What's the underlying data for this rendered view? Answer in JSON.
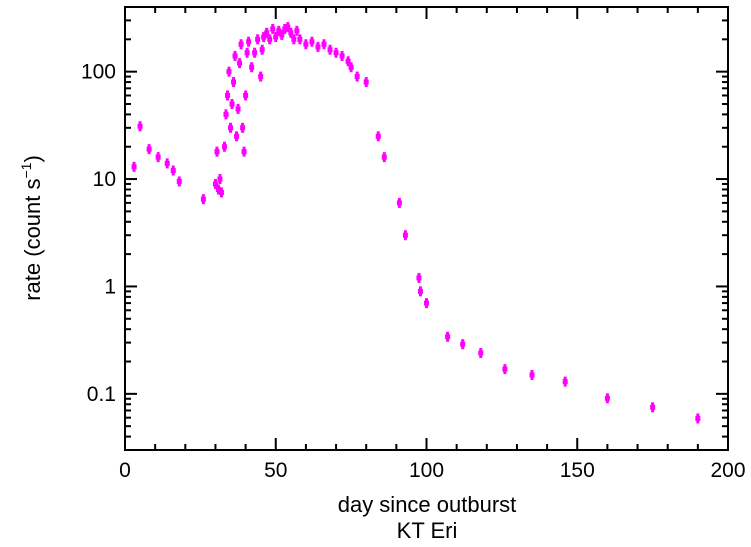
{
  "chart_data": {
    "type": "scatter",
    "title": "",
    "xlabel": "day since outburst",
    "ylabel": "rate (count s",
    "ylabel_sup": "−1",
    "ylabel_close": ")",
    "caption": "KT Eri",
    "xlim": [
      0,
      200
    ],
    "ylim": [
      0.03,
      400
    ],
    "yscale": "log",
    "grid": false,
    "marker_color": "#ff00ff",
    "x_ticks": [
      0,
      50,
      100,
      150,
      200
    ],
    "x_tick_labels": [
      "0",
      "50",
      "100",
      "150",
      "200"
    ],
    "y_ticks": [
      0.1,
      1,
      10,
      100
    ],
    "y_tick_labels": [
      "0.1",
      "1",
      "10",
      "100"
    ],
    "points": [
      [
        3,
        13
      ],
      [
        5,
        31
      ],
      [
        8,
        19
      ],
      [
        11,
        16
      ],
      [
        14,
        14
      ],
      [
        16,
        12
      ],
      [
        18,
        9.5
      ],
      [
        26,
        6.5
      ],
      [
        30,
        9
      ],
      [
        30.5,
        18
      ],
      [
        31,
        8
      ],
      [
        31.5,
        10
      ],
      [
        32,
        7.5
      ],
      [
        33,
        20
      ],
      [
        33.5,
        40
      ],
      [
        34,
        60
      ],
      [
        34.5,
        100
      ],
      [
        35,
        30
      ],
      [
        35.5,
        50
      ],
      [
        36,
        80
      ],
      [
        36.5,
        140
      ],
      [
        37,
        25
      ],
      [
        37.5,
        45
      ],
      [
        38,
        120
      ],
      [
        38.5,
        180
      ],
      [
        39,
        30
      ],
      [
        39.5,
        18
      ],
      [
        40,
        60
      ],
      [
        40.5,
        150
      ],
      [
        41,
        190
      ],
      [
        42,
        110
      ],
      [
        43,
        150
      ],
      [
        44,
        200
      ],
      [
        45,
        90
      ],
      [
        45.5,
        160
      ],
      [
        46,
        210
      ],
      [
        47,
        230
      ],
      [
        48,
        200
      ],
      [
        49,
        250
      ],
      [
        50,
        210
      ],
      [
        51,
        240
      ],
      [
        52,
        220
      ],
      [
        53,
        250
      ],
      [
        54,
        260
      ],
      [
        55,
        230
      ],
      [
        56,
        200
      ],
      [
        57,
        240
      ],
      [
        58,
        200
      ],
      [
        60,
        180
      ],
      [
        62,
        190
      ],
      [
        64,
        170
      ],
      [
        66,
        180
      ],
      [
        68,
        160
      ],
      [
        70,
        150
      ],
      [
        72,
        140
      ],
      [
        74,
        125
      ],
      [
        75,
        110
      ],
      [
        77,
        90
      ],
      [
        80,
        80
      ],
      [
        84,
        25
      ],
      [
        86,
        16
      ],
      [
        91,
        6
      ],
      [
        93,
        3
      ],
      [
        97.5,
        1.2
      ],
      [
        98,
        0.9
      ],
      [
        100,
        0.7
      ],
      [
        107,
        0.34
      ],
      [
        112,
        0.29
      ],
      [
        118,
        0.24
      ],
      [
        126,
        0.17
      ],
      [
        135,
        0.15
      ],
      [
        146,
        0.13
      ],
      [
        160,
        0.091
      ],
      [
        175,
        0.075
      ],
      [
        190,
        0.059
      ]
    ]
  }
}
